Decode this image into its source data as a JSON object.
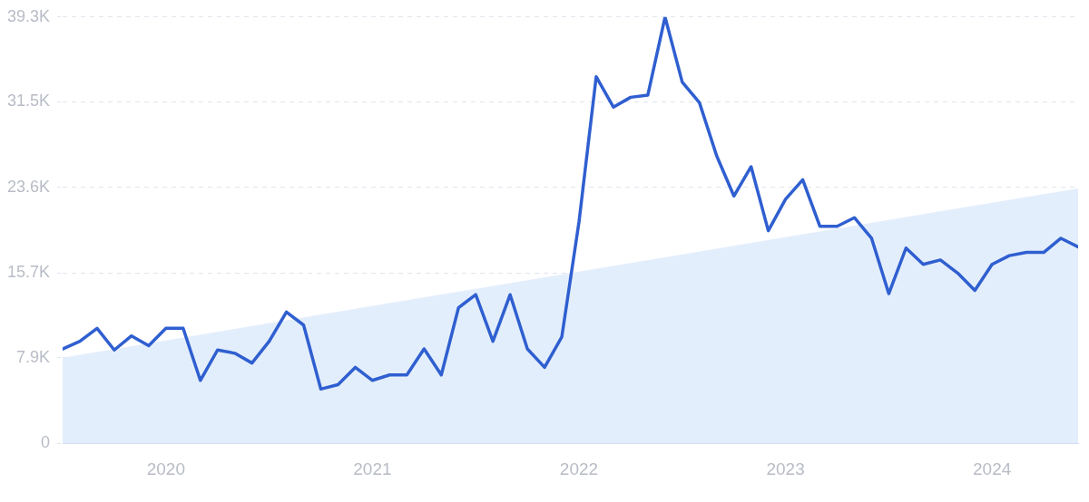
{
  "chart_data": {
    "type": "line",
    "x": [
      "2019-07",
      "2019-08",
      "2019-09",
      "2019-10",
      "2019-11",
      "2019-12",
      "2020-01",
      "2020-02",
      "2020-03",
      "2020-04",
      "2020-05",
      "2020-06",
      "2020-07",
      "2020-08",
      "2020-09",
      "2020-10",
      "2020-11",
      "2020-12",
      "2021-01",
      "2021-02",
      "2021-03",
      "2021-04",
      "2021-05",
      "2021-06",
      "2021-07",
      "2021-08",
      "2021-09",
      "2021-10",
      "2021-11",
      "2021-12",
      "2022-01",
      "2022-02",
      "2022-03",
      "2022-04",
      "2022-05",
      "2022-06",
      "2022-07",
      "2022-08",
      "2022-09",
      "2022-10",
      "2022-11",
      "2022-12",
      "2023-01",
      "2023-02",
      "2023-03",
      "2023-04",
      "2023-05",
      "2023-06",
      "2023-07",
      "2023-08",
      "2023-09",
      "2023-10",
      "2023-11",
      "2023-12",
      "2024-01",
      "2024-02",
      "2024-03",
      "2024-04",
      "2024-05",
      "2024-06"
    ],
    "series": [
      {
        "color": "#2f5fd0",
        "values": [
          8700,
          9400,
          10600,
          8600,
          9900,
          9000,
          10600,
          10600,
          5800,
          8600,
          8300,
          7400,
          9400,
          12100,
          10900,
          5000,
          5400,
          7000,
          5800,
          6300,
          6300,
          8700,
          6300,
          12500,
          13700,
          9400,
          13700,
          8700,
          7000,
          9800,
          20400,
          33800,
          31000,
          31900,
          32100,
          39300,
          33300,
          31400,
          26500,
          22800,
          25500,
          19600,
          22500,
          24300,
          20000,
          20000,
          20800,
          18900,
          13800,
          18000,
          16500,
          16900,
          15700,
          14100,
          16500,
          17300,
          17600,
          17600,
          18900,
          18100
        ]
      },
      {
        "type": "area",
        "color": "#e3eefc",
        "x": [
          "2019-07",
          "2024-06"
        ],
        "values": [
          7900,
          23500
        ]
      }
    ],
    "xlim": [
      "2019-07",
      "2024-06"
    ],
    "xticks": [
      "2020",
      "2021",
      "2022",
      "2023",
      "2024"
    ],
    "ylim": [
      0,
      39300
    ],
    "yticks": [
      0,
      {
        "value": 7900,
        "label": "7.9K"
      },
      {
        "value": 15700,
        "label": "15.7K"
      },
      {
        "value": 23600,
        "label": "23.6K"
      },
      {
        "value": 31500,
        "label": "31.5K"
      },
      {
        "value": 39300,
        "label": "39.3K"
      }
    ],
    "grid": "y",
    "legend": false,
    "marker": "none",
    "line_style": "solid"
  }
}
